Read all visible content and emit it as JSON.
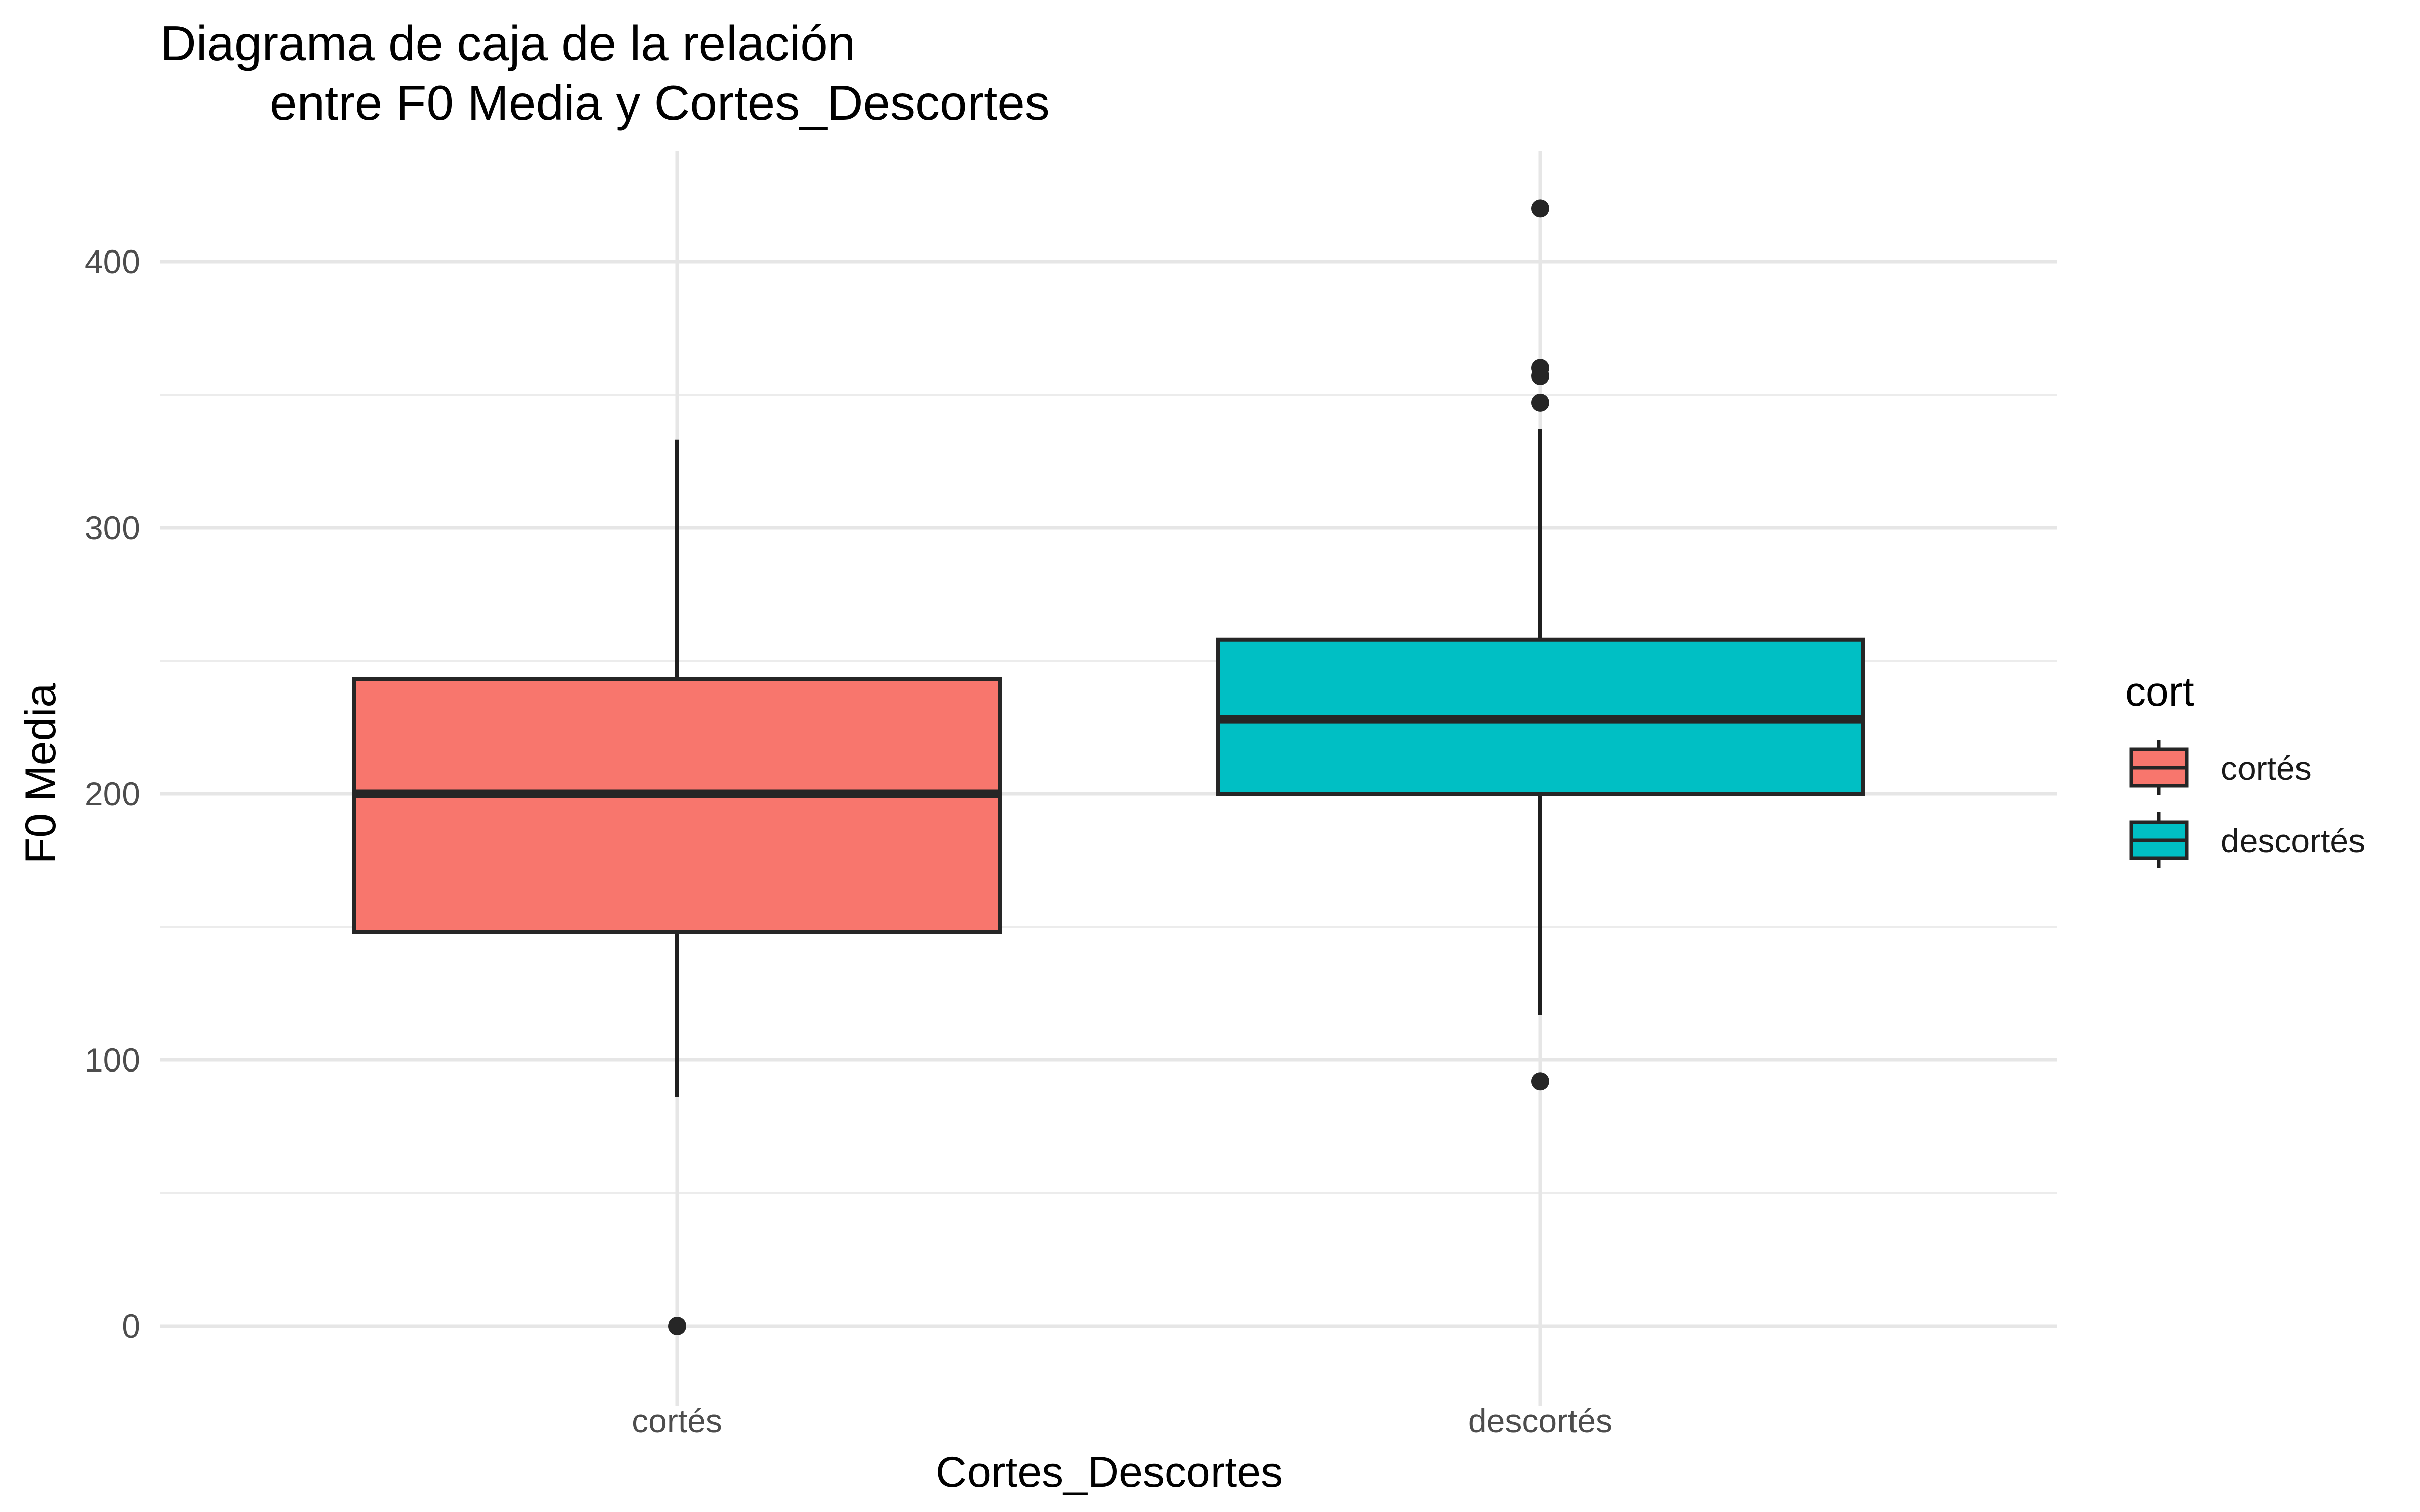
{
  "chart_data": {
    "type": "boxplot",
    "title_lines": [
      "Diagrama de caja de la relación",
      "entre F0 Media y Cortes_Descortes"
    ],
    "xlabel": "Cortes_Descortes",
    "ylabel": "F0 Media",
    "categories": [
      "cortés",
      "descortés"
    ],
    "ylim": [
      -15,
      440
    ],
    "yticks": [
      0,
      100,
      200,
      300,
      400
    ],
    "minor_yticks": [
      50,
      150,
      250,
      350
    ],
    "grid": true,
    "legend": {
      "title": "cort",
      "placement": "right",
      "entries": [
        "cortés",
        "descortés"
      ]
    },
    "series": [
      {
        "category": "cortés",
        "color": "#F8766D",
        "whisker_low": 86,
        "q1": 148,
        "median": 200,
        "q3": 243,
        "whisker_high": 333,
        "outliers": [
          0
        ]
      },
      {
        "category": "descortés",
        "color": "#00BFC4",
        "whisker_low": 117,
        "q1": 200,
        "median": 228,
        "q3": 258,
        "whisker_high": 337,
        "outliers": [
          92,
          347,
          357,
          360,
          420
        ]
      }
    ]
  }
}
